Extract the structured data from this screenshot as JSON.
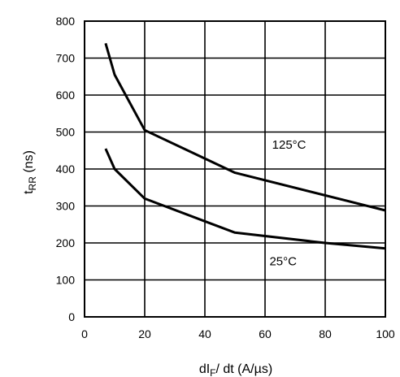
{
  "chart_data": {
    "type": "line",
    "xlabel": {
      "main": "dI",
      "sub": "F",
      "rest": "/ dt (A/µs)"
    },
    "ylabel": {
      "main": "t",
      "sub": "RR",
      "rest": " (ns)"
    },
    "xlim": [
      0,
      100
    ],
    "ylim": [
      0,
      800
    ],
    "x_ticks": [
      0,
      20,
      40,
      60,
      80,
      100
    ],
    "y_ticks": [
      0,
      100,
      200,
      300,
      400,
      500,
      600,
      700,
      800
    ],
    "grid": true,
    "series": [
      {
        "name": "125°C",
        "x": [
          7,
          10,
          20,
          50,
          100
        ],
        "y": [
          740,
          655,
          505,
          390,
          288
        ]
      },
      {
        "name": "25°C",
        "x": [
          7,
          10,
          20,
          50,
          80,
          100
        ],
        "y": [
          455,
          400,
          320,
          228,
          200,
          185
        ]
      }
    ],
    "annotations": [
      {
        "text": "125°C",
        "x": 68,
        "y": 455
      },
      {
        "text": "25°C",
        "x": 66,
        "y": 140
      }
    ]
  }
}
